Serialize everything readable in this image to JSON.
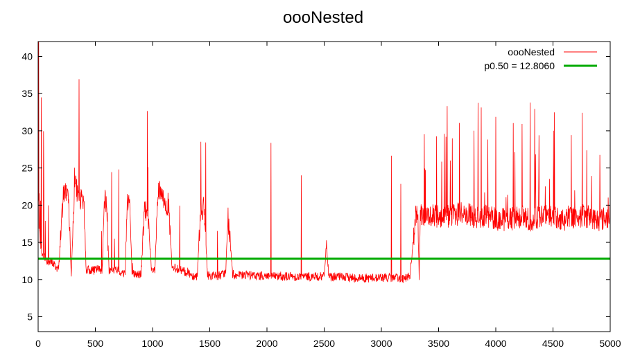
{
  "chart_data": {
    "type": "line",
    "title": "oooNested",
    "xlabel": "",
    "ylabel": "",
    "xlim": [
      0,
      5000
    ],
    "ylim": [
      3,
      42
    ],
    "xticks": [
      0,
      500,
      1000,
      1500,
      2000,
      2500,
      3000,
      3500,
      4000,
      4500,
      5000
    ],
    "yticks": [
      5,
      10,
      15,
      20,
      25,
      30,
      35,
      40
    ],
    "grid": false,
    "legend_position": "top-right",
    "series": [
      {
        "name": "oooNested",
        "color": "#ff0000",
        "kind": "noisy-line",
        "x": [
          0,
          20,
          50,
          80,
          100,
          130,
          160,
          180,
          200,
          230,
          260,
          290,
          320,
          360,
          400,
          420,
          440,
          480,
          520,
          560,
          580,
          600,
          620,
          660,
          700,
          740,
          760,
          780,
          800,
          820,
          860,
          900,
          930,
          960,
          990,
          1020,
          1050,
          1080,
          1110,
          1140,
          1170,
          1210,
          1250,
          1280,
          1310,
          1350,
          1390,
          1420,
          1450,
          1480,
          1520,
          1560,
          1600,
          1640,
          1660,
          1700,
          1750,
          1800,
          1900,
          2000,
          2100,
          2200,
          2300,
          2400,
          2500,
          2520,
          2540,
          2600,
          2700,
          2800,
          2900,
          3000,
          3100,
          3200,
          3250,
          3300,
          3320,
          3330,
          3340,
          3360,
          3400,
          3500,
          3600,
          3700,
          3800,
          3900,
          4000,
          4100,
          4200,
          4300,
          4400,
          4500,
          4600,
          4700,
          4800,
          4900,
          5000
        ],
        "y": [
          20,
          14,
          13,
          12.5,
          12.3,
          12.2,
          11.6,
          11.4,
          17,
          22,
          22,
          11,
          23,
          21,
          20,
          11.2,
          11.3,
          11.2,
          11.4,
          11.3,
          21,
          19.5,
          11.2,
          11.3,
          11.2,
          10.8,
          11,
          21,
          20.5,
          10.8,
          10.7,
          10.7,
          19.5,
          18.5,
          11.2,
          11.2,
          22,
          21,
          20.5,
          20,
          11.5,
          11.5,
          11.3,
          11,
          11,
          10.5,
          10.5,
          19.5,
          19.5,
          10.6,
          10.5,
          10.5,
          10.6,
          11,
          18.5,
          10.7,
          10.5,
          10.6,
          10.5,
          10.5,
          10.5,
          10.4,
          10.4,
          10.4,
          10.4,
          15,
          10.3,
          10.4,
          10.3,
          10.2,
          10.2,
          10.3,
          10.2,
          10.2,
          10.5,
          18.5,
          18.5,
          10.5,
          18.5,
          18.5,
          18.5,
          18.5,
          18.5,
          19,
          18.5,
          18.5,
          18.2,
          18,
          18.5,
          18,
          18.5,
          18.5,
          18,
          18.5,
          18.5,
          18,
          18.5
        ]
      },
      {
        "name": "p0.50 = 12.8060",
        "color": "#00aa00",
        "kind": "hline",
        "value": 12.806
      }
    ]
  }
}
